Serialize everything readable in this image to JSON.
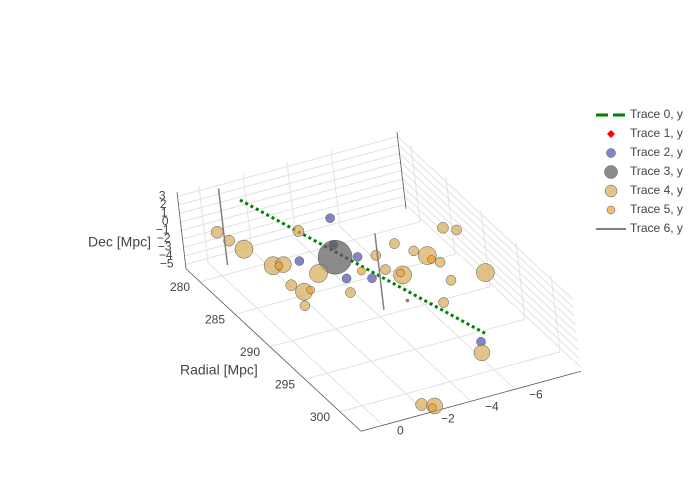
{
  "chart_data": {
    "type": "scatter3d",
    "x_title": "Radial [Mpc]",
    "z_title": "Dec [Mpc]",
    "xlim": [
      278,
      303
    ],
    "ylim": [
      -9,
      1
    ],
    "zlim": [
      -5.5,
      3.5
    ],
    "xticks": [
      280,
      285,
      290,
      295,
      300
    ],
    "yticks": [
      0,
      {
        "value": -2,
        "label": "−2"
      },
      {
        "value": -4,
        "label": "−4"
      },
      {
        "value": -6,
        "label": "−6"
      }
    ],
    "zticks": [
      3,
      2,
      1,
      0,
      {
        "value": -1,
        "label": "−1"
      },
      {
        "value": -2,
        "label": "−2"
      },
      {
        "value": -3,
        "label": "−3"
      },
      {
        "value": -4,
        "label": "−4"
      },
      {
        "value": -5,
        "label": "−5"
      }
    ],
    "grid": true,
    "opacity": 0.7,
    "series": [
      {
        "name": "Trace 0, y",
        "mode": "lines",
        "dash": true,
        "color": "#008000",
        "x": [
          279.4,
          299.3
        ],
        "y": [
          -1.35,
          -6.1
        ],
        "z": [
          2,
          -2
        ]
      },
      {
        "name": "Trace 1, y",
        "mode": "markers",
        "symbol": "diamond",
        "color": "#ff0000",
        "marker_size": 8,
        "x": [],
        "y": [],
        "z": []
      },
      {
        "name": "Trace 2, y",
        "mode": "markers",
        "color": "#5050b0",
        "marker_size": 9,
        "x": [
          282.4,
          285.7,
          287.9,
          286.5,
          290.9,
          290.1,
          299.9
        ],
        "y": [
          -4.4,
          -3.5,
          -3.9,
          -1.7,
          -3.6,
          -2.7,
          -5.6
        ],
        "z": [
          0,
          0,
          0,
          0,
          0,
          0,
          -2
        ]
      },
      {
        "name": "Trace 3, y",
        "mode": "markers",
        "color": "#5a5a5a",
        "marker_size": 3,
        "x": [
          287.2,
          294.7
        ],
        "y": [
          -3.1,
          -4.0
        ],
        "z": [
          0,
          0
        ],
        "sizes": [
          34,
          3
        ]
      },
      {
        "name": "Trace 4, y",
        "mode": "markers",
        "color": "#d9a955",
        "marker_size": 12,
        "x": [
          280.4,
          281.8,
          283.3,
          286.2,
          286.4,
          282.9,
          288.6,
          290.3,
          289.1,
          292.0,
          291.9,
          288.3,
          287.5,
          291.5,
          290.0,
          287.2,
          287.9,
          291.2,
          293.7,
          293.9,
          296.1,
          300.2,
          302.3,
          302.9,
          290.3,
          289.0
        ],
        "y": [
          0.1,
          0.0,
          -0.2,
          -0.6,
          -1.0,
          -2.8,
          -1.9,
          -0.7,
          -0.5,
          -0.2,
          -2.3,
          -4.6,
          -5.7,
          -4.8,
          -6.4,
          -8.0,
          -8.4,
          -6.6,
          -6.3,
          -7.8,
          -5.2,
          -5.5,
          -2.0,
          -2.4,
          -4.4,
          -6.1
        ],
        "z": [
          0,
          0,
          0,
          0,
          0,
          0,
          0,
          0,
          0,
          0,
          0,
          0,
          0,
          0,
          0,
          0,
          0,
          0,
          0,
          0,
          0,
          -3,
          -5,
          -5,
          0,
          0
        ],
        "sizes": [
          12,
          11,
          18,
          18,
          16,
          11,
          18,
          17,
          11,
          10,
          10,
          10,
          10,
          18,
          18,
          11,
          10,
          10,
          10,
          18,
          10,
          16,
          12,
          16,
          10,
          10
        ]
      },
      {
        "name": "Trace 5, y",
        "mode": "markers",
        "color": "#f0a030",
        "marker_size": 8,
        "x": [
          286.4,
          290.3,
          289.7,
          291.2,
          290.6,
          302.5
        ],
        "y": [
          -0.8,
          -1.0,
          -3.5,
          -4.8,
          -6.4,
          -2.4
        ],
        "z": [
          0,
          0,
          0,
          0,
          0,
          -5.5
        ]
      },
      {
        "name": "Trace 6, y",
        "mode": "lines",
        "color": "#808080",
        "x": [
          278.9,
          278.9,
          null,
          289.3,
          289.3
        ],
        "y": [
          -0.6,
          -0.6,
          null,
          -4.4,
          -4.4
        ],
        "z": [
          -5.5,
          3.5,
          null,
          -5.5,
          3.5
        ]
      }
    ]
  }
}
